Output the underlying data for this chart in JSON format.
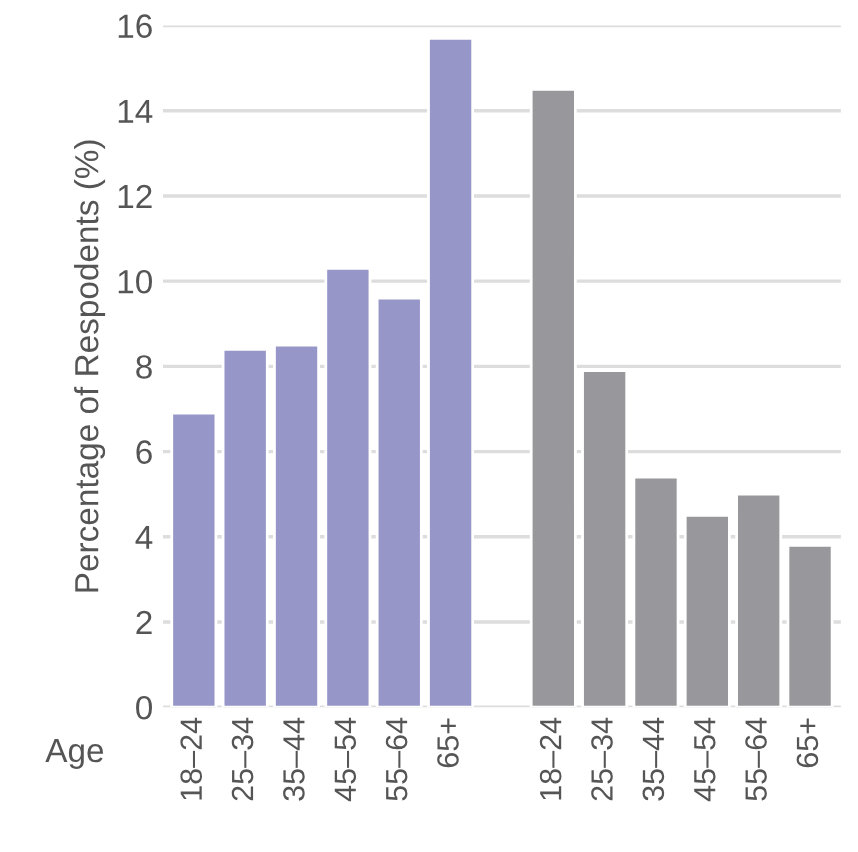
{
  "chart_data": {
    "type": "bar",
    "ylabel": "Percentage of Respodents (%)",
    "xlabel": "Age",
    "categories": [
      "18–24",
      "25–34",
      "35–44",
      "45–54",
      "55–64",
      "65+",
      null,
      "18–24",
      "25–34",
      "35–44",
      "45–54",
      "55–64",
      "65+"
    ],
    "series": [
      {
        "color": "#9696c8",
        "values": [
          6.9,
          8.4,
          8.5,
          10.3,
          9.6,
          15.7,
          null,
          null,
          null,
          null,
          null,
          null,
          null
        ]
      },
      {
        "color": "#98989c",
        "values": [
          null,
          null,
          null,
          null,
          null,
          null,
          null,
          14.5,
          7.9,
          5.4,
          4.5,
          5.0,
          3.8
        ]
      }
    ],
    "ylim": [
      0,
      16
    ],
    "yticks": [
      0,
      2,
      4,
      6,
      8,
      10,
      12,
      14,
      16
    ],
    "grid": "y",
    "legend": false
  }
}
